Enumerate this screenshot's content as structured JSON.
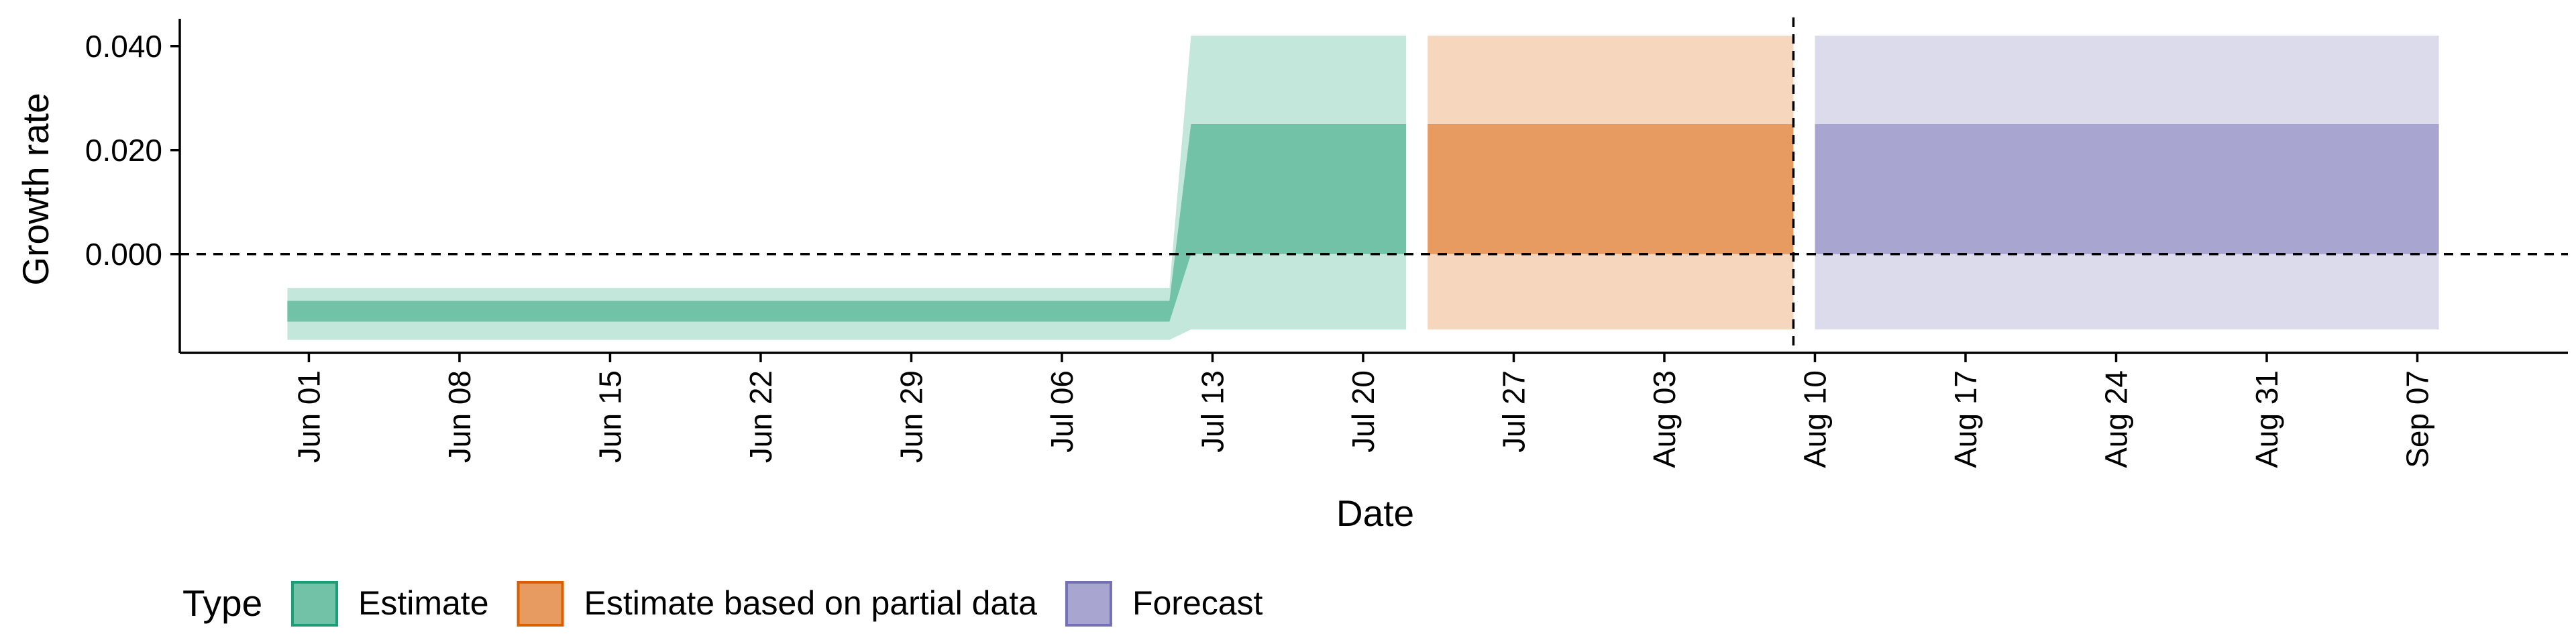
{
  "chart_data": {
    "type": "area",
    "xlabel": "Date",
    "ylabel": "Growth rate",
    "x_axis": {
      "type": "date",
      "range": [
        "2020-05-26",
        "2020-09-14"
      ],
      "ticks": [
        "2020-06-01",
        "2020-06-08",
        "2020-06-15",
        "2020-06-22",
        "2020-06-29",
        "2020-07-06",
        "2020-07-13",
        "2020-07-20",
        "2020-07-27",
        "2020-08-03",
        "2020-08-10",
        "2020-08-17",
        "2020-08-24",
        "2020-08-31",
        "2020-09-07"
      ],
      "tick_labels": [
        "Jun 01",
        "Jun 08",
        "Jun 15",
        "Jun 22",
        "Jun 29",
        "Jul 06",
        "Jul 13",
        "Jul 20",
        "Jul 27",
        "Aug 03",
        "Aug 10",
        "Aug 17",
        "Aug 24",
        "Aug 31",
        "Sep 07"
      ]
    },
    "y_axis": {
      "range": [
        -0.019,
        0.045
      ],
      "ticks": [
        0.0,
        0.02,
        0.04
      ],
      "tick_labels": [
        "0.000",
        "0.020",
        "0.040"
      ]
    },
    "reference_lines": {
      "horizontal_y": 0.0,
      "vertical_date": "2020-08-09"
    },
    "legend": {
      "title": "Type",
      "position": "bottom",
      "entries": [
        {
          "label": "Estimate",
          "fill": "#72C2A8",
          "stroke": "#1B9E77"
        },
        {
          "label": "Estimate based on partial data",
          "fill": "#E89B60",
          "stroke": "#D95F02"
        },
        {
          "label": "Forecast",
          "fill": "#A8A5D1",
          "stroke": "#7570B3"
        }
      ]
    },
    "series": [
      {
        "name": "Estimate",
        "fill_inner": "#72C2A8",
        "fill_outer": "#C4E7DC",
        "x": [
          "2020-05-31",
          "2020-07-11",
          "2020-07-12",
          "2020-07-22"
        ],
        "outer_low": [
          -0.0165,
          -0.0165,
          -0.0145,
          -0.0145
        ],
        "outer_high": [
          -0.0065,
          -0.0065,
          0.042,
          0.042
        ],
        "inner_low": [
          -0.013,
          -0.013,
          0.0,
          0.0
        ],
        "inner_high": [
          -0.009,
          -0.009,
          0.025,
          0.025
        ]
      },
      {
        "name": "Estimate based on partial data",
        "fill_inner": "#E89B60",
        "fill_outer": "#F6D6BD",
        "x": [
          "2020-07-23",
          "2020-08-09"
        ],
        "outer_low": [
          -0.0145,
          -0.0145
        ],
        "outer_high": [
          0.042,
          0.042
        ],
        "inner_low": [
          0.0,
          0.0
        ],
        "inner_high": [
          0.025,
          0.025
        ]
      },
      {
        "name": "Forecast",
        "fill_inner": "#A8A5D1",
        "fill_outer": "#DCDBEC",
        "x": [
          "2020-08-10",
          "2020-09-08"
        ],
        "outer_low": [
          -0.0145,
          -0.0145
        ],
        "outer_high": [
          0.042,
          0.042
        ],
        "inner_low": [
          0.0,
          0.0
        ],
        "inner_high": [
          0.025,
          0.025
        ]
      }
    ]
  }
}
